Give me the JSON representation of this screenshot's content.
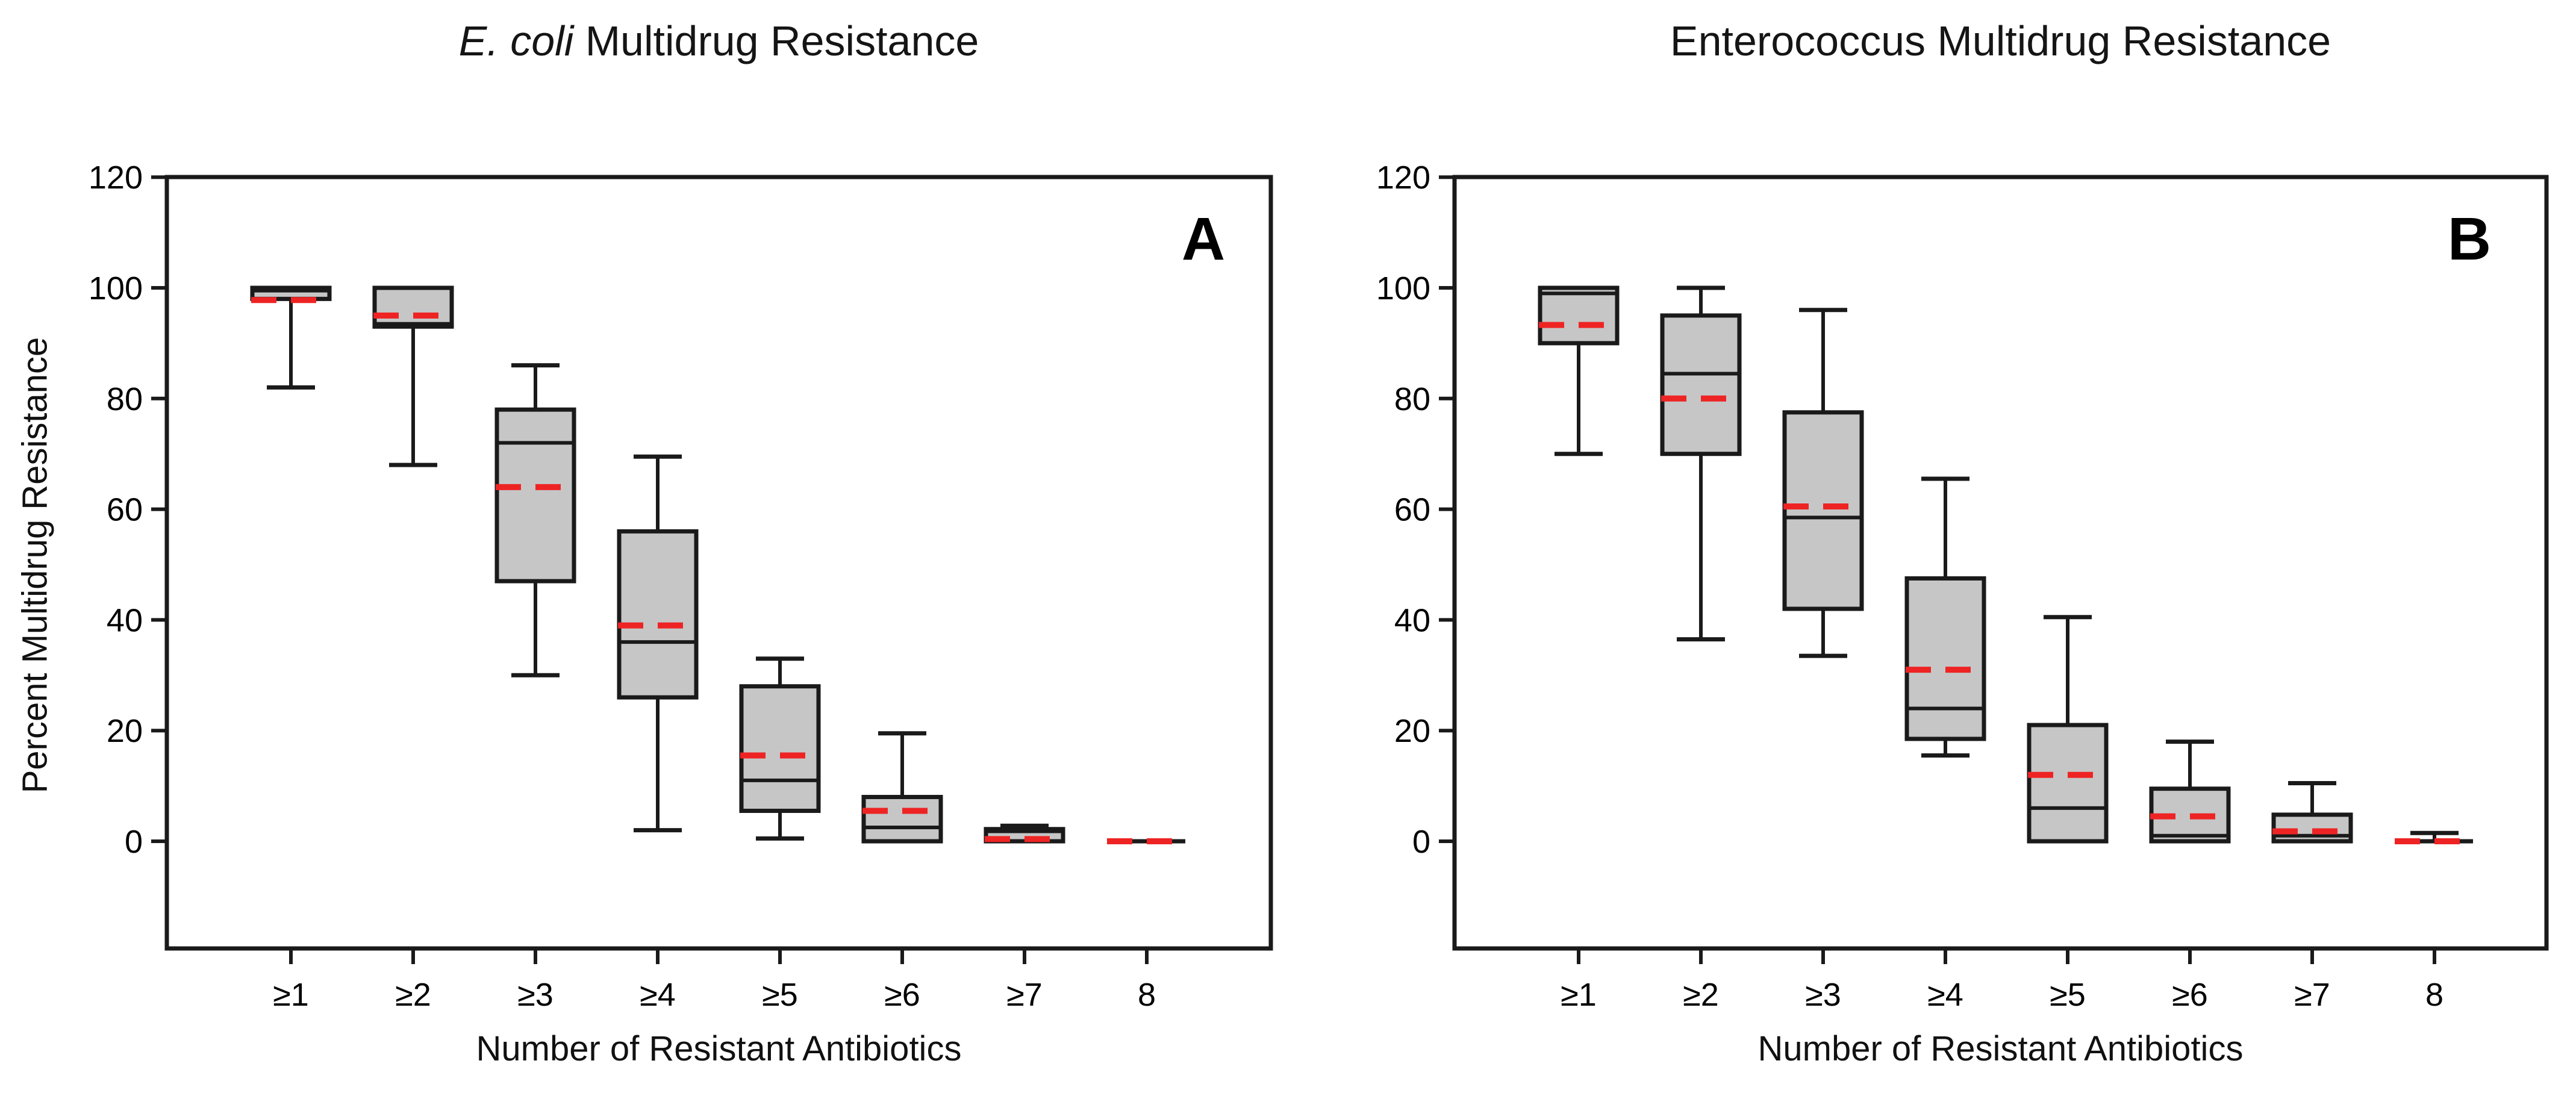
{
  "figure": {
    "background": "#ffffff",
    "description": "Two-panel box plot figure comparing multidrug resistance",
    "mean_line_style": "red dashed horizontal line inside each box"
  },
  "colors": {
    "box_fill": "#c6c6c6",
    "line": "#1a1a1a",
    "text": "#000000",
    "mean_dash": "#ee2424"
  },
  "chart_data": [
    {
      "type": "box",
      "panel": "A",
      "corner_label": "A",
      "title": "E. coli Multidrug Resistance",
      "title_italic": "E. coli",
      "title_rest": " Multidrug Resistance",
      "xlabel": "Number of Resistant Antibiotics",
      "ylabel": "Percent Multidrug Resistance",
      "y_axis": {
        "min": 0,
        "max": 120,
        "step": 20,
        "ticks": [
          0,
          20,
          40,
          60,
          80,
          100,
          120
        ],
        "frame_extends_below_zero": true
      },
      "grid": false,
      "legend": "none",
      "categories": [
        "≥1",
        "≥2",
        "≥3",
        "≥4",
        "≥5",
        "≥6",
        "≥7",
        "8"
      ],
      "boxes": [
        {
          "category": "≥1",
          "whisker_low": 82,
          "q1": 98,
          "median": 99.5,
          "q3": 100,
          "whisker_high": 100,
          "mean": 97.8
        },
        {
          "category": "≥2",
          "whisker_low": 68,
          "q1": 93,
          "median": 93.5,
          "q3": 100,
          "whisker_high": 100,
          "mean": 95
        },
        {
          "category": "≥3",
          "whisker_low": 30,
          "q1": 47,
          "median": 72,
          "q3": 78,
          "whisker_high": 86,
          "mean": 64
        },
        {
          "category": "≥4",
          "whisker_low": 2,
          "q1": 26,
          "median": 36,
          "q3": 56,
          "whisker_high": 69.5,
          "mean": 39
        },
        {
          "category": "≥5",
          "whisker_low": 0.5,
          "q1": 5.5,
          "median": 11,
          "q3": 28,
          "whisker_high": 33,
          "mean": 15.5
        },
        {
          "category": "≥6",
          "whisker_low": 0,
          "q1": 0,
          "median": 2.5,
          "q3": 8,
          "whisker_high": 19.5,
          "mean": 5.5
        },
        {
          "category": "≥7",
          "whisker_low": 0,
          "q1": 0,
          "median": 1.8,
          "q3": 2.2,
          "whisker_high": 2.8,
          "mean": 0.4
        },
        {
          "category": "8",
          "whisker_low": 0,
          "q1": 0,
          "median": 0,
          "q3": 0,
          "whisker_high": 0,
          "mean": 0
        }
      ]
    },
    {
      "type": "box",
      "panel": "B",
      "corner_label": "B",
      "title": "Enterococcus Multidrug Resistance",
      "title_italic": "",
      "title_rest": "Enterococcus Multidrug Resistance",
      "xlabel": "Number of Resistant Antibiotics",
      "ylabel": "",
      "y_axis": {
        "min": 0,
        "max": 120,
        "step": 20,
        "ticks": [
          0,
          20,
          40,
          60,
          80,
          100,
          120
        ],
        "frame_extends_below_zero": true
      },
      "grid": false,
      "legend": "none",
      "categories": [
        "≥1",
        "≥2",
        "≥3",
        "≥4",
        "≥5",
        "≥6",
        "≥7",
        "8"
      ],
      "boxes": [
        {
          "category": "≥1",
          "whisker_low": 70,
          "q1": 90,
          "median": 99,
          "q3": 100,
          "whisker_high": 100,
          "mean": 93.3
        },
        {
          "category": "≥2",
          "whisker_low": 36.5,
          "q1": 70,
          "median": 84.5,
          "q3": 95,
          "whisker_high": 100,
          "mean": 80
        },
        {
          "category": "≥3",
          "whisker_low": 33.5,
          "q1": 42,
          "median": 58.5,
          "q3": 77.5,
          "whisker_high": 96,
          "mean": 60.5
        },
        {
          "category": "≥4",
          "whisker_low": 15.5,
          "q1": 18.5,
          "median": 24,
          "q3": 47.5,
          "whisker_high": 65.5,
          "mean": 31
        },
        {
          "category": "≥5",
          "whisker_low": 0,
          "q1": 0,
          "median": 6,
          "q3": 21,
          "whisker_high": 40.5,
          "mean": 12
        },
        {
          "category": "≥6",
          "whisker_low": 0,
          "q1": 0,
          "median": 1,
          "q3": 9.5,
          "whisker_high": 18,
          "mean": 4.5
        },
        {
          "category": "≥7",
          "whisker_low": 0,
          "q1": 0,
          "median": 1,
          "q3": 4.8,
          "whisker_high": 10.5,
          "mean": 1.8
        },
        {
          "category": "8",
          "whisker_low": 0,
          "q1": 0,
          "median": 0,
          "q3": 0.3,
          "whisker_high": 1.5,
          "mean": 0
        }
      ]
    }
  ]
}
